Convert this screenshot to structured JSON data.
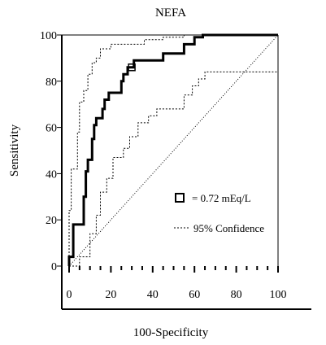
{
  "chart_data": {
    "type": "line",
    "title": "NEFA",
    "xlabel": "100-Specificity",
    "ylabel": "Sensitivity",
    "xlim": [
      0,
      100
    ],
    "ylim": [
      0,
      100
    ],
    "x_ticks": [
      0,
      20,
      40,
      60,
      80,
      100
    ],
    "y_ticks": [
      0,
      20,
      40,
      60,
      80,
      100
    ],
    "grid": false,
    "legend_position": "lower-right",
    "legend": {
      "marker_label": "= 0.72 mEq/L",
      "ci_label": "95% Confidence"
    },
    "series": [
      {
        "name": "",
        "style": "solid-thick",
        "points": [
          [
            0,
            0
          ],
          [
            0,
            4
          ],
          [
            2,
            4
          ],
          [
            2,
            18
          ],
          [
            7,
            18
          ],
          [
            7,
            30
          ],
          [
            8,
            30
          ],
          [
            8,
            41
          ],
          [
            9,
            41
          ],
          [
            9,
            46
          ],
          [
            11,
            46
          ],
          [
            11,
            55
          ],
          [
            12,
            55
          ],
          [
            12,
            61
          ],
          [
            13,
            61
          ],
          [
            13,
            64
          ],
          [
            16,
            64
          ],
          [
            16,
            68
          ],
          [
            17,
            68
          ],
          [
            17,
            72
          ],
          [
            19,
            72
          ],
          [
            19,
            75
          ],
          [
            25,
            75
          ],
          [
            25,
            80
          ],
          [
            26,
            80
          ],
          [
            26,
            83
          ],
          [
            28,
            83
          ],
          [
            28,
            86
          ],
          [
            31,
            86
          ],
          [
            31,
            89
          ],
          [
            45,
            89
          ],
          [
            45,
            92
          ],
          [
            55,
            92
          ],
          [
            55,
            96
          ],
          [
            60,
            96
          ],
          [
            60,
            99
          ],
          [
            64,
            99
          ],
          [
            64,
            100
          ],
          [
            100,
            100
          ]
        ]
      },
      {
        "name": "",
        "style": "dashed-upper-ci",
        "points": [
          [
            0,
            0
          ],
          [
            0,
            24
          ],
          [
            1,
            24
          ],
          [
            1,
            42
          ],
          [
            4,
            42
          ],
          [
            4,
            58
          ],
          [
            5,
            58
          ],
          [
            5,
            71
          ],
          [
            7,
            71
          ],
          [
            7,
            76
          ],
          [
            9,
            76
          ],
          [
            9,
            83
          ],
          [
            11,
            83
          ],
          [
            11,
            88
          ],
          [
            13,
            88
          ],
          [
            13,
            90
          ],
          [
            15,
            90
          ],
          [
            15,
            94
          ],
          [
            20,
            94
          ],
          [
            20,
            96
          ],
          [
            36,
            96
          ],
          [
            36,
            98
          ],
          [
            45,
            98
          ],
          [
            45,
            99
          ],
          [
            55,
            99
          ],
          [
            55,
            100
          ],
          [
            100,
            100
          ]
        ]
      },
      {
        "name": "",
        "style": "dashed-lower-ci",
        "points": [
          [
            0,
            0
          ],
          [
            5,
            0
          ],
          [
            5,
            4
          ],
          [
            10,
            4
          ],
          [
            10,
            14
          ],
          [
            13,
            14
          ],
          [
            13,
            22
          ],
          [
            15,
            22
          ],
          [
            15,
            32
          ],
          [
            18,
            32
          ],
          [
            18,
            38
          ],
          [
            21,
            38
          ],
          [
            21,
            47
          ],
          [
            26,
            47
          ],
          [
            26,
            51
          ],
          [
            29,
            51
          ],
          [
            29,
            56
          ],
          [
            33,
            56
          ],
          [
            33,
            62
          ],
          [
            38,
            62
          ],
          [
            38,
            65
          ],
          [
            42,
            65
          ],
          [
            42,
            68
          ],
          [
            55,
            68
          ],
          [
            55,
            74
          ],
          [
            59,
            74
          ],
          [
            59,
            78
          ],
          [
            62,
            78
          ],
          [
            62,
            81
          ],
          [
            65,
            81
          ],
          [
            65,
            84
          ],
          [
            100,
            84
          ],
          [
            100,
            100
          ]
        ]
      },
      {
        "name": "",
        "style": "diagonal-reference",
        "points": [
          [
            0,
            0
          ],
          [
            100,
            100
          ]
        ]
      }
    ],
    "cutoff_point": {
      "x": 30,
      "y": 86
    }
  }
}
